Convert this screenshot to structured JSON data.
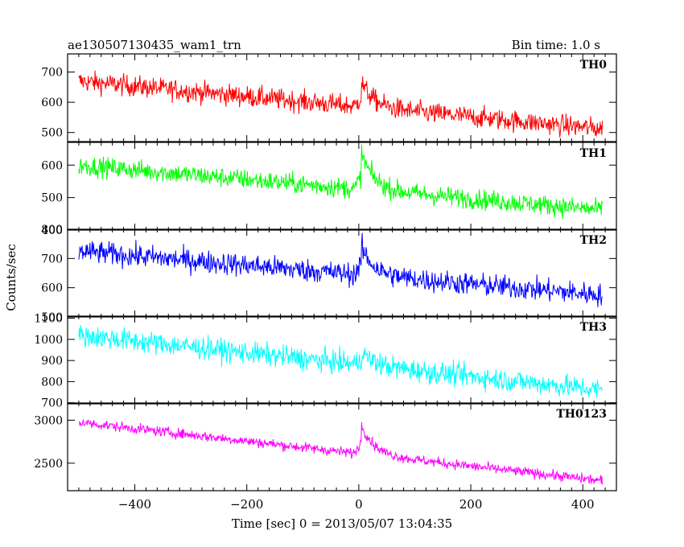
{
  "title_left": "ae130507130435_wam1_trn",
  "title_right": "Bin time: 1.0 s",
  "ylabel": "Counts/sec",
  "xlabel": "Time [sec] 0 = 2013/05/07 13:04:35",
  "chart_data": {
    "type": "line",
    "x_ticks": [
      -400,
      -200,
      0,
      200,
      400
    ],
    "xlim": [
      -520,
      460
    ],
    "x_range": [
      -500,
      435
    ],
    "burst_time": 5,
    "panels": [
      {
        "name": "TH0",
        "color": "#ff0000",
        "ylim": [
          470,
          760
        ],
        "y_ticks": [
          500,
          600,
          700
        ],
        "start": 670,
        "end": 512,
        "noise": 25,
        "peak": 80
      },
      {
        "name": "TH1",
        "color": "#00ff00",
        "ylim": [
          400,
          670
        ],
        "y_ticks": [
          400,
          500,
          600
        ],
        "start": 600,
        "end": 462,
        "noise": 22,
        "peak": 110
      },
      {
        "name": "TH2",
        "color": "#0000ff",
        "ylim": [
          500,
          800
        ],
        "y_ticks": [
          500,
          600,
          700,
          800
        ],
        "start": 725,
        "end": 575,
        "noise": 28,
        "peak": 95
      },
      {
        "name": "TH3",
        "color": "#00ffff",
        "ylim": [
          695,
          1110
        ],
        "y_ticks": [
          700,
          800,
          900,
          1000,
          1100
        ],
        "start": 1020,
        "end": 760,
        "noise": 38,
        "peak": 60
      },
      {
        "name": "TH0123",
        "color": "#ff00ff",
        "ylim": [
          2180,
          3200
        ],
        "y_ticks": [
          2500,
          3000
        ],
        "start": 2975,
        "end": 2295,
        "noise": 42,
        "peak": 340
      }
    ]
  }
}
